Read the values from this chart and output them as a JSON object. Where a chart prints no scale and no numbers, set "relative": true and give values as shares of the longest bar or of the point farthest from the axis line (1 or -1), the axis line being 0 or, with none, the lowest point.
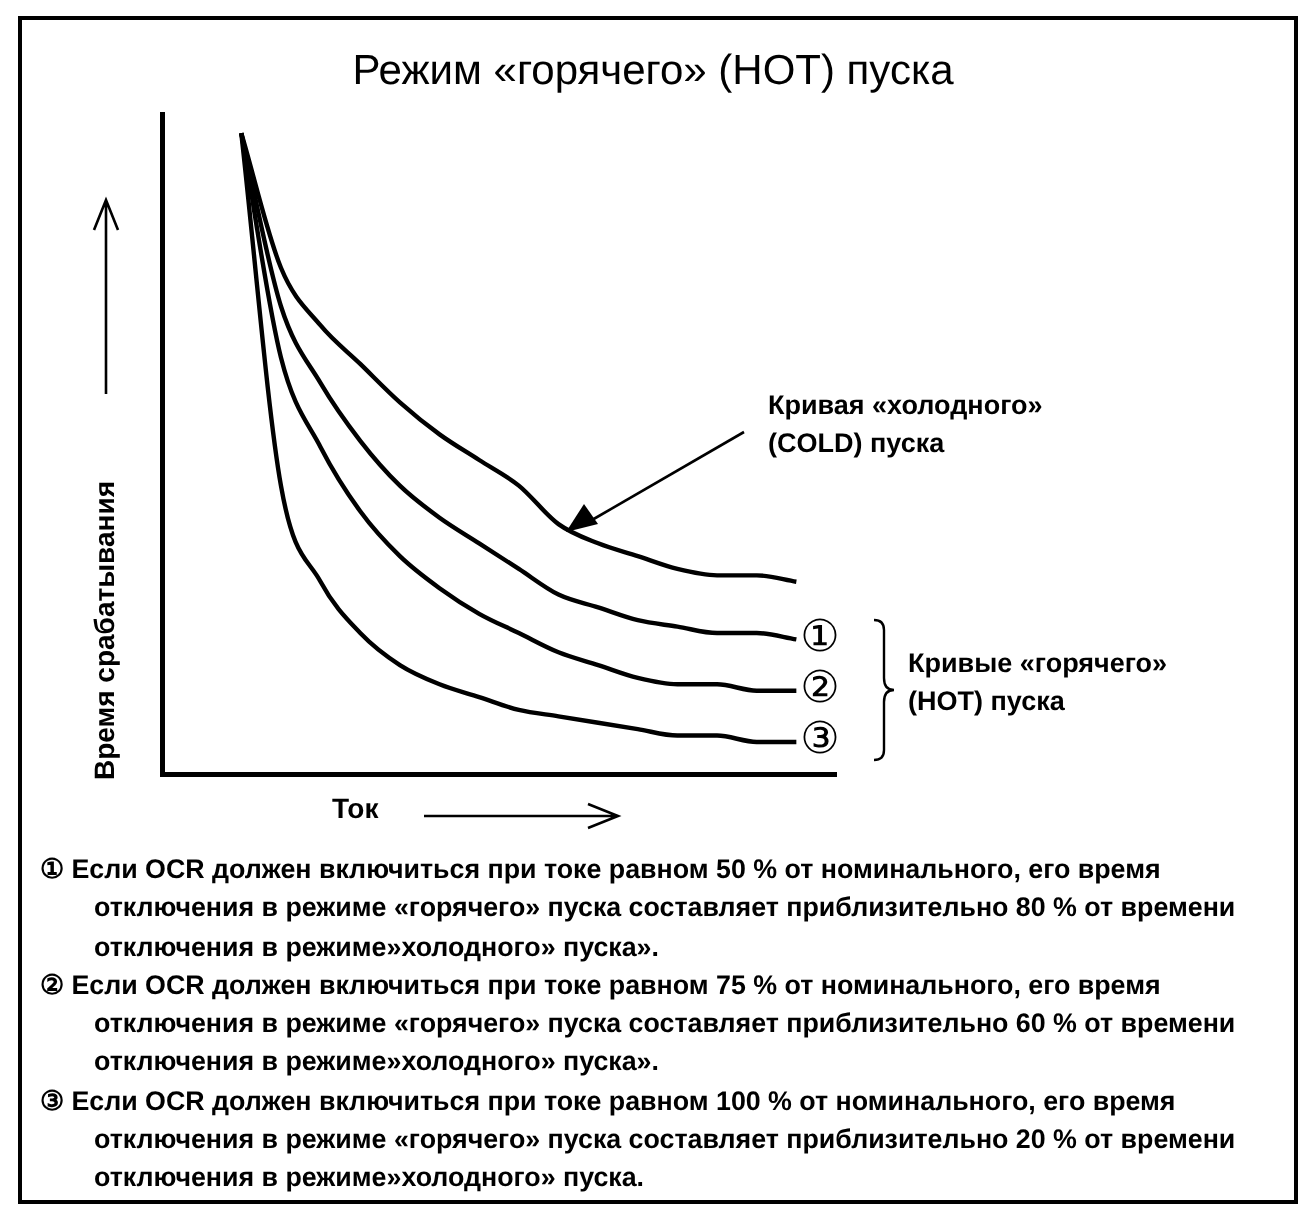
{
  "chart_data": {
    "type": "line",
    "title": "Режим «горячего» (HOT) пуска",
    "xlabel": "Ток",
    "ylabel": "Время срабатывания",
    "relative": true,
    "grid": false,
    "legend": false,
    "marker": "none",
    "line_style": "solid",
    "categories": [
      null,
      null,
      null,
      null,
      null,
      null,
      null,
      null,
      null,
      null,
      null,
      null,
      null,
      null,
      null,
      null,
      null,
      null
    ],
    "series": [
      {
        "color": "#000000",
        "values": [
          null,
          null,
          1.0,
          0.79,
          0.7,
          0.64,
          0.58,
          0.53,
          0.49,
          0.45,
          0.39,
          0.36,
          0.34,
          0.32,
          0.31,
          0.31,
          0.3,
          null
        ]
      },
      {
        "name": "①",
        "color": "#000000",
        "values": [
          null,
          null,
          1.0,
          0.73,
          0.61,
          0.52,
          0.45,
          0.4,
          0.36,
          0.32,
          0.28,
          0.26,
          0.24,
          0.23,
          0.22,
          0.22,
          0.21,
          null
        ]
      },
      {
        "name": "②",
        "color": "#000000",
        "values": [
          null,
          null,
          1.0,
          0.65,
          0.51,
          0.41,
          0.34,
          0.29,
          0.25,
          0.22,
          0.19,
          0.17,
          0.15,
          0.14,
          0.14,
          0.13,
          0.13,
          null
        ]
      },
      {
        "name": "③",
        "color": "#000000",
        "values": [
          null,
          null,
          1.0,
          0.45,
          0.3,
          0.22,
          0.17,
          0.14,
          0.12,
          0.1,
          0.09,
          0.08,
          0.07,
          0.06,
          0.06,
          0.05,
          0.05,
          null
        ]
      }
    ],
    "annotations": [
      "Кривая «холодного» (COLD) пуска",
      "Кривые «горячего» (HOT) пуска",
      "① Если OCR должен включиться при токе равном 50 % от номинального, его время отключения в режиме «горячего» пуска составляет приблизительно 80 % от времени отключения в режиме»холодного» пуска».",
      "② Если OCR должен включиться при токе равном 75 % от номинального, его время отключения в режиме «горячего» пуска составляет приблизительно 60 % от времени отключения в режиме»холодного» пуска».",
      "③ Если OCR должен включиться при токе равном 100 % от номинального, его время отключения в режиме «горячего» пуска составляет приблизительно 20 % от времени отключения в режиме»холодного» пуска."
    ]
  }
}
